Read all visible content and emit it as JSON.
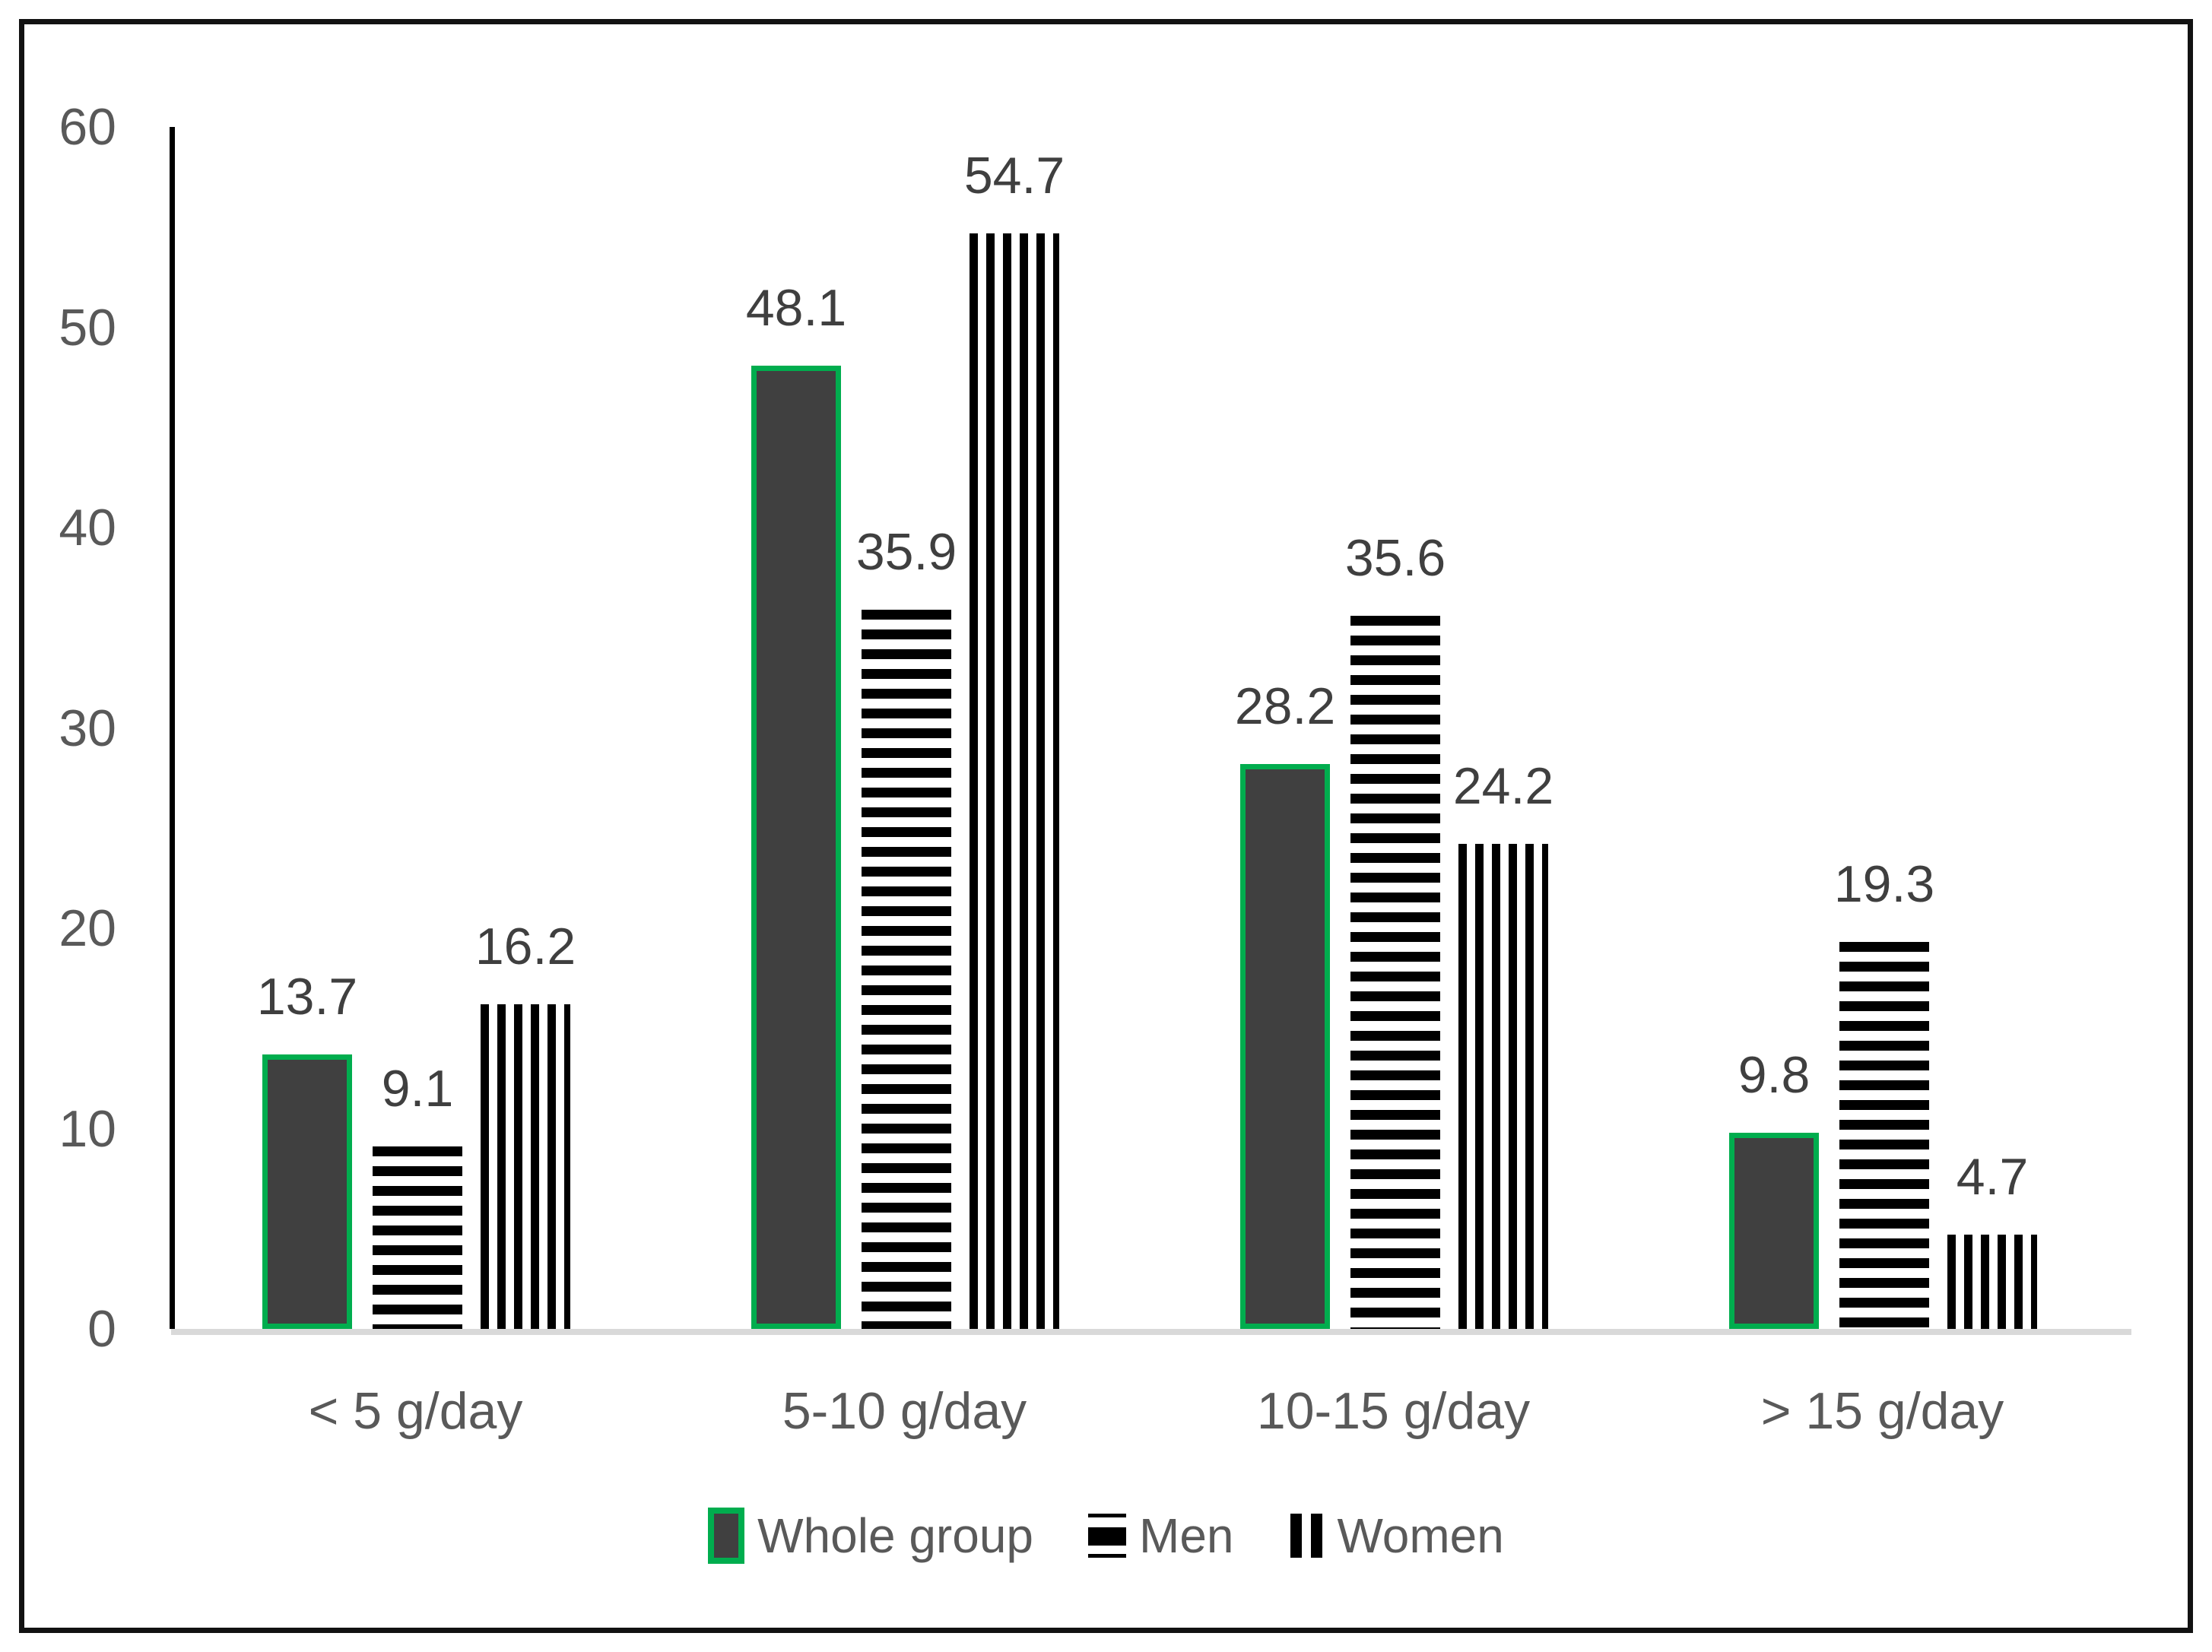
{
  "chart_data": {
    "type": "bar",
    "categories": [
      "< 5 g/day",
      "5-10 g/day",
      "10-15 g/day",
      "> 15 g/day"
    ],
    "series": [
      {
        "name": "Whole group",
        "pattern": "solid-dark-fill-green-border",
        "values": [
          13.7,
          48.1,
          28.2,
          9.8
        ]
      },
      {
        "name": "Men",
        "pattern": "horizontal-black-stripes",
        "values": [
          9.1,
          35.9,
          35.6,
          19.3
        ]
      },
      {
        "name": "Women",
        "pattern": "vertical-black-stripes",
        "values": [
          16.2,
          54.7,
          24.2,
          4.7
        ]
      }
    ],
    "title": "",
    "xlabel": "",
    "ylabel": "",
    "ylim": [
      0,
      60
    ],
    "yticks": [
      0,
      10,
      20,
      30,
      40,
      50,
      60
    ],
    "grid": false,
    "value_labels": true,
    "legend_position": "bottom"
  },
  "colors": {
    "background": "#FFFFFF",
    "frame_border": "#121212",
    "axis_line": "#000000",
    "baseline_gray": "#D9D9D9",
    "tick_label_gray": "#595959",
    "value_label_gray": "#3F3F3F",
    "bar_dark_fill": "#404040",
    "bar_green_border": "#00AD4E",
    "stripe_black": "#000000"
  }
}
